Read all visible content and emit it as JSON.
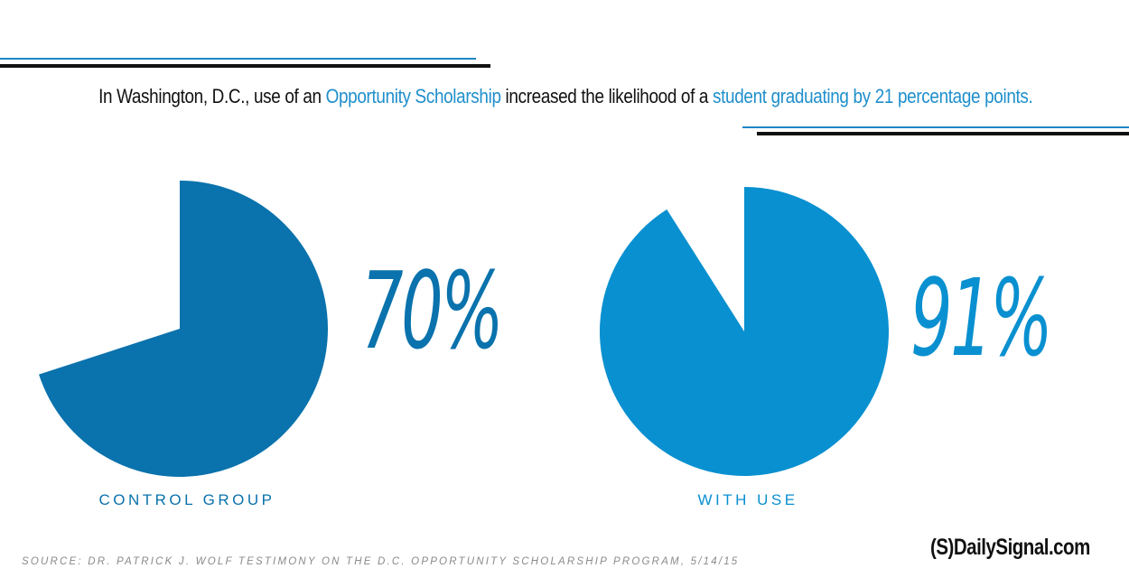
{
  "headline": {
    "part1": "In Washington, D.C., use of an ",
    "highlight1": "Opportunity Scholarship",
    "part2": " increased the likelihood of a ",
    "highlight2": "student graduating by 21 percentage points."
  },
  "colors": {
    "control": "#0a72ac",
    "with_use": "#0990d0",
    "accent": "#1f8fcc",
    "rule_blue": "#1f87c4",
    "rule_black": "#111111"
  },
  "chart_data": [
    {
      "type": "pie",
      "category": "CONTROL GROUP",
      "value": 70,
      "label": "70%"
    },
    {
      "type": "pie",
      "category": "WITH USE",
      "value": 91,
      "label": "91%"
    }
  ],
  "source": "SOURCE: DR. PATRICK J. WOLF TESTIMONY ON THE D.C. OPPORTUNITY SCHOLARSHIP PROGRAM, 5/14/15",
  "brand": "(S)DailySignal.com"
}
